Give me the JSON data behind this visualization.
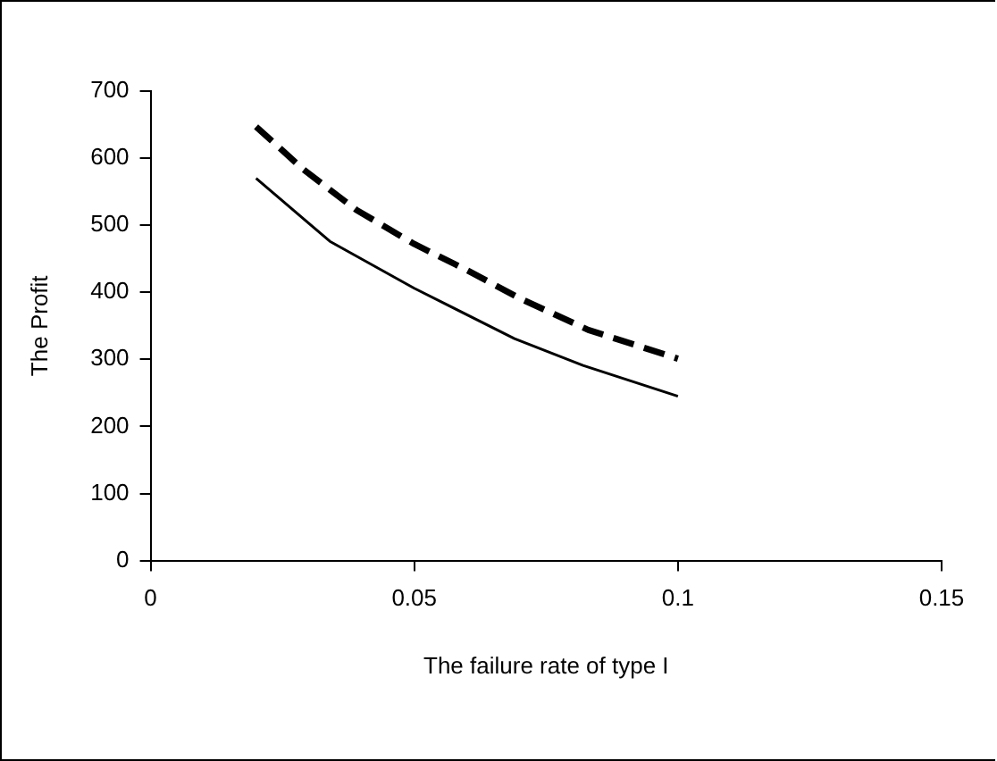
{
  "chart_data": {
    "type": "line",
    "xlabel": "The failure rate of type I",
    "ylabel": "The Profit",
    "xlim": [
      0,
      0.15
    ],
    "xticks": [
      0,
      0.05,
      0.1,
      0.15
    ],
    "ylim": [
      0,
      700
    ],
    "yticks": [
      0,
      100,
      200,
      300,
      400,
      500,
      600,
      700
    ],
    "grid": false,
    "legend": false,
    "marker": "none",
    "series": [
      {
        "color": "#000000",
        "line_style": "dashed",
        "x": [
          0.02,
          0.029,
          0.039,
          0.05,
          0.06,
          0.07,
          0.083,
          0.1
        ],
        "values": [
          647,
          583,
          523,
          472,
          433,
          391,
          344,
          301
        ]
      },
      {
        "color": "#000000",
        "line_style": "solid",
        "x": [
          0.02,
          0.034,
          0.05,
          0.069,
          0.082,
          0.1
        ],
        "values": [
          570,
          476,
          406,
          331,
          291,
          245
        ]
      }
    ]
  }
}
